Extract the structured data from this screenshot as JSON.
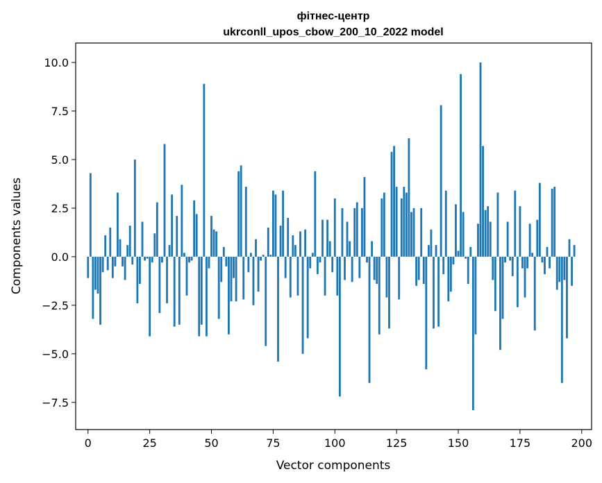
{
  "chart_data": {
    "type": "bar",
    "title": "фітнес-центр",
    "subtitle": "ukrconll_upos_cbow_200_10_2022 model",
    "xlabel": "Vector components",
    "ylabel": "Components values",
    "xlim": [
      -5,
      204
    ],
    "ylim": [
      -8.9,
      11.0
    ],
    "x_ticks": [
      0,
      25,
      50,
      75,
      100,
      125,
      150,
      175,
      200
    ],
    "y_ticks": [
      -7.5,
      -5.0,
      -2.5,
      0.0,
      2.5,
      5.0,
      7.5,
      10.0
    ],
    "x_tick_labels": [
      "0",
      "25",
      "50",
      "75",
      "100",
      "125",
      "150",
      "175",
      "200"
    ],
    "y_tick_labels": [
      "−7.5",
      "−5.0",
      "−2.5",
      "0.0",
      "2.5",
      "5.0",
      "7.5",
      "10.0"
    ],
    "grid": false,
    "bar_color": "#1f77b4",
    "values": [
      -1.1,
      4.3,
      -3.2,
      -1.7,
      -1.9,
      -3.5,
      -0.8,
      1.1,
      -0.7,
      1.5,
      -1.1,
      -0.5,
      3.3,
      0.9,
      -0.5,
      -1.2,
      0.6,
      1.6,
      -0.4,
      5.0,
      -2.4,
      -1.4,
      1.8,
      -0.2,
      -0.1,
      -4.1,
      -0.3,
      1.2,
      2.8,
      -2.9,
      -0.3,
      5.8,
      -2.4,
      0.6,
      3.2,
      -3.6,
      2.1,
      -3.5,
      3.7,
      0.2,
      -2.0,
      -0.3,
      -0.2,
      2.9,
      2.2,
      -4.1,
      -3.5,
      8.9,
      -4.1,
      -0.6,
      2.1,
      1.4,
      1.3,
      -3.2,
      -1.3,
      0.5,
      -0.5,
      -4.0,
      -2.3,
      -1.1,
      -2.3,
      4.4,
      4.7,
      -2.2,
      3.6,
      -0.8,
      0.2,
      -2.5,
      0.9,
      -1.8,
      -0.2,
      0.1,
      -4.6,
      1.5,
      0.1,
      3.4,
      3.2,
      -5.4,
      1.6,
      3.4,
      -1.1,
      2.0,
      -2.1,
      1.1,
      0.6,
      -2.0,
      1.3,
      -5.0,
      1.4,
      -4.2,
      -0.6,
      0.2,
      4.4,
      -0.9,
      -0.3,
      1.9,
      -2.0,
      1.9,
      0.8,
      -0.8,
      3.0,
      -2.0,
      -7.2,
      2.5,
      -1.2,
      1.8,
      0.8,
      -1.3,
      2.5,
      2.8,
      -1.1,
      2.5,
      4.1,
      -0.3,
      -6.5,
      0.8,
      -1.2,
      -1.4,
      -4.0,
      3.0,
      3.3,
      -2.1,
      -3.7,
      5.4,
      5.7,
      3.6,
      -2.2,
      3.0,
      3.6,
      3.3,
      6.1,
      2.3,
      2.5,
      -1.5,
      -1.2,
      2.5,
      -1.4,
      -5.8,
      0.6,
      1.4,
      -3.7,
      0.6,
      -3.6,
      7.8,
      -0.9,
      3.4,
      -2.3,
      -1.8,
      -0.4,
      2.7,
      0.3,
      9.4,
      2.3,
      -0.1,
      -1.4,
      0.5,
      -7.9,
      -4.0,
      1.7,
      10.0,
      5.7,
      2.4,
      2.6,
      1.8,
      -1.2,
      -2.8,
      3.3,
      -4.8,
      -3.2,
      -0.3,
      1.8,
      -0.2,
      -1.0,
      3.4,
      -2.6,
      2.6,
      -0.6,
      -2.1,
      -0.6,
      1.7,
      0.2,
      -3.8,
      1.9,
      3.8,
      -0.3,
      -0.9,
      0.5,
      -0.6,
      3.5,
      3.6,
      -1.7,
      -1.3,
      -6.5,
      -1.2,
      -4.2,
      0.9,
      -1.5,
      0.6
    ]
  }
}
